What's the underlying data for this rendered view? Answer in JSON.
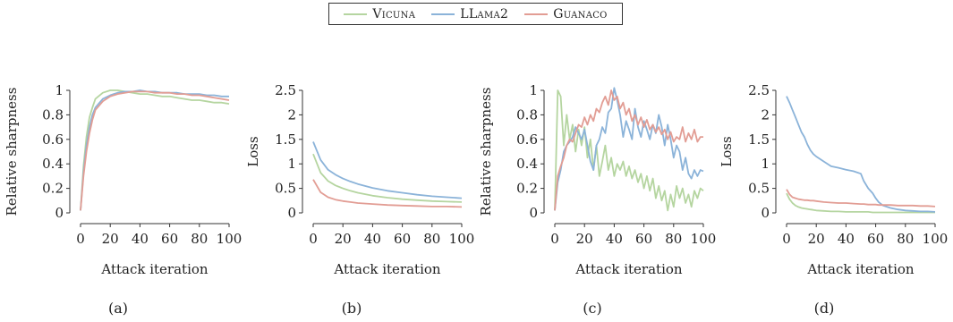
{
  "legend": {
    "items": [
      {
        "label": "Vicuna",
        "color": "#b5d5a0"
      },
      {
        "label": "LLama2",
        "color": "#8bb3d9"
      },
      {
        "label": "Guanaco",
        "color": "#e29d94"
      }
    ]
  },
  "chart_data": [
    {
      "panel_label": "(a)",
      "type": "line",
      "xlabel": "Attack iteration",
      "ylabel": "Relative sharpness",
      "xlim": [
        0,
        100
      ],
      "ylim": [
        0,
        1
      ],
      "xticks": [
        0,
        20,
        40,
        60,
        80,
        100
      ],
      "yticks": [
        0,
        0.2,
        0.4,
        0.6,
        0.8,
        1
      ],
      "ytick_labels": [
        "0",
        "0.2",
        "0.4",
        "0.6",
        "0.8",
        "1"
      ],
      "x": [
        0,
        2,
        4,
        6,
        8,
        10,
        15,
        20,
        25,
        30,
        35,
        40,
        45,
        50,
        55,
        60,
        65,
        70,
        75,
        80,
        85,
        90,
        95,
        100
      ],
      "series": [
        {
          "name": "Vicuna",
          "color": "#b5d5a0",
          "values": [
            0.02,
            0.38,
            0.62,
            0.78,
            0.86,
            0.93,
            0.98,
            1.0,
            1.0,
            0.99,
            0.98,
            0.97,
            0.97,
            0.96,
            0.95,
            0.95,
            0.94,
            0.93,
            0.92,
            0.92,
            0.91,
            0.9,
            0.9,
            0.89
          ]
        },
        {
          "name": "LLama2",
          "color": "#8bb3d9",
          "values": [
            0.02,
            0.33,
            0.55,
            0.7,
            0.8,
            0.86,
            0.93,
            0.96,
            0.98,
            0.99,
            0.99,
            1.0,
            0.99,
            0.99,
            0.98,
            0.98,
            0.98,
            0.97,
            0.97,
            0.97,
            0.96,
            0.96,
            0.95,
            0.95
          ]
        },
        {
          "name": "Guanaco",
          "color": "#e29d94",
          "values": [
            0.02,
            0.3,
            0.5,
            0.65,
            0.76,
            0.84,
            0.91,
            0.95,
            0.97,
            0.98,
            0.99,
            0.99,
            0.99,
            0.98,
            0.98,
            0.98,
            0.97,
            0.97,
            0.96,
            0.96,
            0.95,
            0.94,
            0.93,
            0.92
          ]
        }
      ]
    },
    {
      "panel_label": "(b)",
      "type": "line",
      "xlabel": "Attack iteration",
      "ylabel": "Loss",
      "xlim": [
        0,
        100
      ],
      "ylim": [
        0,
        2.5
      ],
      "xticks": [
        0,
        20,
        40,
        60,
        80,
        100
      ],
      "yticks": [
        0,
        0.5,
        1,
        1.5,
        2,
        2.5
      ],
      "ytick_labels": [
        "0",
        "0.5",
        "1",
        "1.5",
        "2",
        "2.5"
      ],
      "x": [
        0,
        5,
        10,
        15,
        20,
        25,
        30,
        40,
        50,
        60,
        70,
        80,
        90,
        100
      ],
      "series": [
        {
          "name": "Vicuna",
          "color": "#b5d5a0",
          "values": [
            1.2,
            0.82,
            0.65,
            0.56,
            0.5,
            0.45,
            0.41,
            0.35,
            0.31,
            0.28,
            0.26,
            0.24,
            0.23,
            0.22
          ]
        },
        {
          "name": "LLama2",
          "color": "#8bb3d9",
          "values": [
            1.45,
            1.08,
            0.88,
            0.78,
            0.7,
            0.64,
            0.59,
            0.51,
            0.45,
            0.41,
            0.37,
            0.34,
            0.32,
            0.3
          ]
        },
        {
          "name": "Guanaco",
          "color": "#e29d94",
          "values": [
            0.68,
            0.42,
            0.32,
            0.27,
            0.24,
            0.22,
            0.2,
            0.18,
            0.16,
            0.15,
            0.14,
            0.13,
            0.13,
            0.12
          ]
        }
      ]
    },
    {
      "panel_label": "(c)",
      "type": "line",
      "xlabel": "Attack iteration",
      "ylabel": "Relative sharpness",
      "xlim": [
        0,
        100
      ],
      "ylim": [
        0,
        1
      ],
      "xticks": [
        0,
        20,
        40,
        60,
        80,
        100
      ],
      "yticks": [
        0,
        0.2,
        0.4,
        0.6,
        0.8,
        1
      ],
      "ytick_labels": [
        "0",
        "0.2",
        "0.4",
        "0.6",
        "0.8",
        "1"
      ],
      "x": [
        0,
        2,
        4,
        6,
        8,
        10,
        12,
        14,
        16,
        18,
        20,
        22,
        24,
        26,
        28,
        30,
        32,
        34,
        36,
        38,
        40,
        42,
        44,
        46,
        48,
        50,
        52,
        54,
        56,
        58,
        60,
        62,
        64,
        66,
        68,
        70,
        72,
        74,
        76,
        78,
        80,
        82,
        84,
        86,
        88,
        90,
        92,
        94,
        96,
        98,
        100
      ],
      "series": [
        {
          "name": "Vicuna",
          "color": "#b5d5a0",
          "values": [
            0.02,
            1.0,
            0.95,
            0.55,
            0.8,
            0.6,
            0.72,
            0.5,
            0.68,
            0.55,
            0.7,
            0.45,
            0.6,
            0.35,
            0.55,
            0.3,
            0.42,
            0.55,
            0.35,
            0.45,
            0.3,
            0.4,
            0.35,
            0.42,
            0.3,
            0.38,
            0.28,
            0.35,
            0.25,
            0.32,
            0.2,
            0.3,
            0.18,
            0.28,
            0.12,
            0.22,
            0.1,
            0.18,
            0.02,
            0.15,
            0.05,
            0.22,
            0.12,
            0.2,
            0.08,
            0.15,
            0.05,
            0.18,
            0.12,
            0.2,
            0.18
          ]
        },
        {
          "name": "LLama2",
          "color": "#8bb3d9",
          "values": [
            0.02,
            0.25,
            0.35,
            0.5,
            0.55,
            0.58,
            0.62,
            0.7,
            0.65,
            0.6,
            0.68,
            0.55,
            0.42,
            0.35,
            0.55,
            0.6,
            0.7,
            0.65,
            0.82,
            0.85,
            1.02,
            0.92,
            0.8,
            0.62,
            0.75,
            0.68,
            0.6,
            0.85,
            0.7,
            0.62,
            0.75,
            0.68,
            0.6,
            0.72,
            0.65,
            0.8,
            0.7,
            0.55,
            0.72,
            0.6,
            0.45,
            0.55,
            0.5,
            0.35,
            0.45,
            0.32,
            0.28,
            0.35,
            0.3,
            0.35,
            0.34
          ]
        },
        {
          "name": "Guanaco",
          "color": "#e29d94",
          "values": [
            0.02,
            0.3,
            0.38,
            0.45,
            0.55,
            0.6,
            0.58,
            0.65,
            0.72,
            0.7,
            0.78,
            0.72,
            0.8,
            0.75,
            0.85,
            0.82,
            0.9,
            0.95,
            0.88,
            1.0,
            0.92,
            0.95,
            0.85,
            0.9,
            0.8,
            0.85,
            0.75,
            0.8,
            0.72,
            0.78,
            0.7,
            0.76,
            0.68,
            0.72,
            0.66,
            0.7,
            0.64,
            0.68,
            0.6,
            0.66,
            0.58,
            0.62,
            0.6,
            0.7,
            0.58,
            0.65,
            0.6,
            0.68,
            0.58,
            0.62,
            0.62
          ]
        }
      ]
    },
    {
      "panel_label": "(d)",
      "type": "line",
      "xlabel": "Attack iteration",
      "ylabel": "Loss",
      "xlim": [
        0,
        100
      ],
      "ylim": [
        0,
        2.5
      ],
      "xticks": [
        0,
        20,
        40,
        60,
        80,
        100
      ],
      "yticks": [
        0,
        0.5,
        1,
        1.5,
        2,
        2.5
      ],
      "ytick_labels": [
        "0",
        "0.5",
        "1",
        "1.5",
        "2",
        "2.5"
      ],
      "x": [
        0,
        2,
        4,
        6,
        8,
        10,
        12,
        14,
        16,
        18,
        20,
        25,
        30,
        35,
        40,
        45,
        50,
        52,
        55,
        58,
        60,
        62,
        65,
        70,
        75,
        80,
        85,
        90,
        95,
        100
      ],
      "series": [
        {
          "name": "Vicuna",
          "color": "#b5d5a0",
          "values": [
            0.4,
            0.28,
            0.2,
            0.15,
            0.12,
            0.1,
            0.09,
            0.08,
            0.07,
            0.06,
            0.05,
            0.04,
            0.03,
            0.03,
            0.02,
            0.02,
            0.02,
            0.02,
            0.02,
            0.01,
            0.01,
            0.01,
            0.01,
            0.01,
            0.01,
            0.01,
            0.01,
            0.01,
            0.01,
            0.01
          ]
        },
        {
          "name": "LLama2",
          "color": "#8bb3d9",
          "values": [
            2.38,
            2.25,
            2.1,
            1.95,
            1.8,
            1.65,
            1.55,
            1.4,
            1.28,
            1.2,
            1.15,
            1.05,
            0.95,
            0.92,
            0.88,
            0.85,
            0.8,
            0.65,
            0.5,
            0.4,
            0.3,
            0.22,
            0.15,
            0.1,
            0.07,
            0.05,
            0.04,
            0.03,
            0.03,
            0.02
          ]
        },
        {
          "name": "Guanaco",
          "color": "#e29d94",
          "values": [
            0.48,
            0.38,
            0.32,
            0.3,
            0.28,
            0.27,
            0.26,
            0.26,
            0.25,
            0.25,
            0.24,
            0.22,
            0.21,
            0.2,
            0.2,
            0.19,
            0.18,
            0.18,
            0.17,
            0.17,
            0.17,
            0.16,
            0.16,
            0.16,
            0.15,
            0.15,
            0.15,
            0.14,
            0.14,
            0.13
          ]
        }
      ]
    }
  ]
}
